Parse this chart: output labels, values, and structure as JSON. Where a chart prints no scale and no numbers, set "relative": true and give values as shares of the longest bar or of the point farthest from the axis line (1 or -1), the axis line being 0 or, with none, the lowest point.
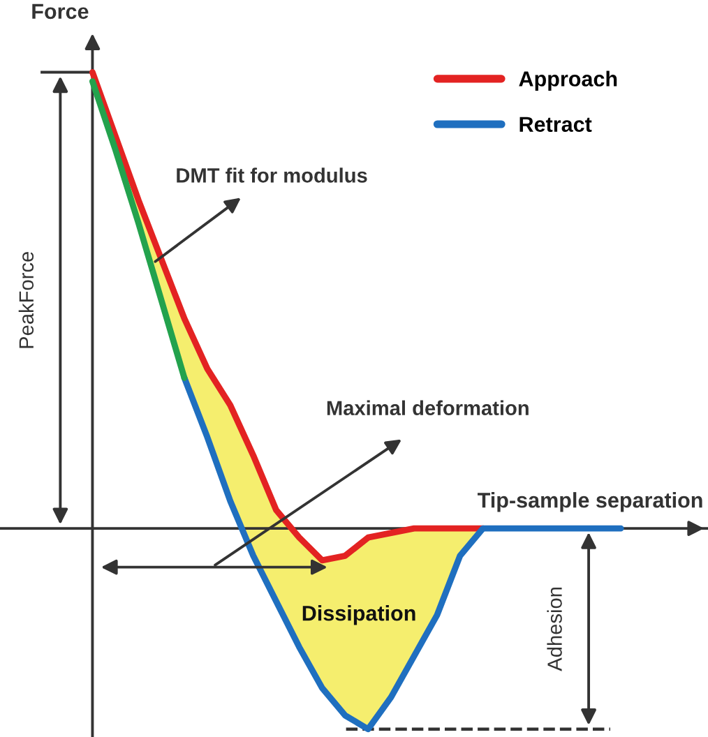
{
  "chart_data": {
    "type": "line",
    "relative": true,
    "xlabel": "Tip-sample separation",
    "ylabel": "Force",
    "legend": "top right",
    "marker": "none",
    "line_style": "solid",
    "grid": false,
    "categories": [
      null,
      null,
      null,
      null,
      null,
      null,
      null,
      null,
      null,
      null,
      null,
      null,
      null,
      null,
      null,
      null,
      null,
      null,
      null,
      null,
      null,
      null,
      null,
      null
    ],
    "series": [
      {
        "name": "Approach",
        "color": "#e32322",
        "values": [
          1.0,
          0.86,
          0.72,
          0.59,
          0.46,
          0.35,
          0.27,
          0.16,
          0.04,
          -0.02,
          -0.07,
          -0.06,
          -0.02,
          -0.01,
          0,
          0,
          0,
          0,
          null,
          null,
          null,
          null,
          null,
          null
        ],
        "lower": [
          0.98,
          0.83,
          0.67,
          0.5,
          0.33,
          0.2,
          0.06,
          -0.06,
          -0.16,
          -0.26,
          -0.35,
          -0.41,
          -0.44,
          -0.37,
          -0.28,
          -0.19,
          -0.06,
          0,
          null,
          null,
          null,
          null,
          null,
          null
        ],
        "upper": [
          1.0,
          0.86,
          0.72,
          0.59,
          0.46,
          0.35,
          0.27,
          0.16,
          0.04,
          -0.02,
          -0.07,
          -0.06,
          -0.02,
          -0.01,
          0,
          0,
          0,
          0,
          null,
          null,
          null,
          null,
          null,
          null
        ]
      },
      {
        "name": "Retract",
        "color": "#1f6fbf",
        "values": [
          null,
          null,
          null,
          null,
          0.33,
          0.2,
          0.06,
          -0.06,
          -0.16,
          -0.26,
          -0.35,
          -0.41,
          -0.44,
          -0.37,
          -0.28,
          -0.19,
          -0.06,
          0,
          0,
          0,
          0,
          0,
          0,
          0
        ]
      },
      {
        "color": "#23a24d",
        "values": [
          0.98,
          0.83,
          0.67,
          0.5,
          0.33,
          null,
          null,
          null,
          null,
          null,
          null,
          null,
          null,
          null,
          null,
          null,
          null,
          null,
          null,
          null,
          null,
          null,
          null,
          null
        ]
      }
    ],
    "ref_lines": [
      {
        "axis": "y",
        "value": -0.44,
        "line_style": "dashed",
        "color": "#333333"
      }
    ],
    "annotations": [
      "DMT fit for modulus",
      "Maximal deformation",
      "PeakForce",
      "Adhesion",
      "Dissipation"
    ]
  }
}
